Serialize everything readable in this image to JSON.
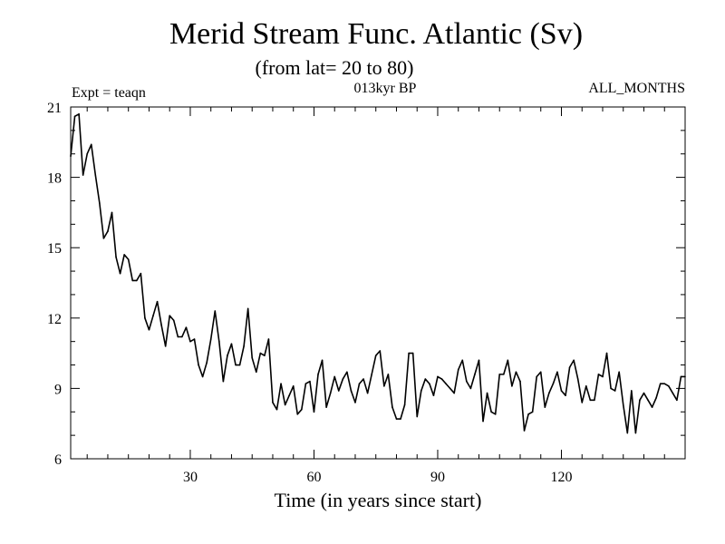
{
  "chart_data": {
    "type": "line",
    "title": "Merid Stream Func. Atlantic (Sv)",
    "subtitle": "(from lat= 20 to 80)",
    "left_label": "Expt = teaqn",
    "center_label": "013kyr BP",
    "right_label": "ALL_MONTHS",
    "xlabel": "Time (in years since start)",
    "ylabel": "",
    "xlim": [
      1,
      150
    ],
    "ylim": [
      6,
      21
    ],
    "x_ticks": [
      30,
      60,
      90,
      120
    ],
    "y_ticks": [
      6,
      9,
      12,
      15,
      18,
      21
    ],
    "grid": false,
    "series": [
      {
        "name": "Merid Stream Func. Atlantic",
        "x": [
          1,
          2,
          3,
          4,
          5,
          6,
          7,
          8,
          9,
          10,
          11,
          12,
          13,
          14,
          15,
          16,
          17,
          18,
          19,
          20,
          21,
          22,
          23,
          24,
          25,
          26,
          27,
          28,
          29,
          30,
          31,
          32,
          33,
          34,
          35,
          36,
          37,
          38,
          39,
          40,
          41,
          42,
          43,
          44,
          45,
          46,
          47,
          48,
          49,
          50,
          51,
          52,
          53,
          54,
          55,
          56,
          57,
          58,
          59,
          60,
          61,
          62,
          63,
          64,
          65,
          66,
          67,
          68,
          69,
          70,
          71,
          72,
          73,
          74,
          75,
          76,
          77,
          78,
          79,
          80,
          81,
          82,
          83,
          84,
          85,
          86,
          87,
          88,
          89,
          90,
          91,
          92,
          93,
          94,
          95,
          96,
          97,
          98,
          99,
          100,
          101,
          102,
          103,
          104,
          105,
          106,
          107,
          108,
          109,
          110,
          111,
          112,
          113,
          114,
          115,
          116,
          117,
          118,
          119,
          120,
          121,
          122,
          123,
          124,
          125,
          126,
          127,
          128,
          129,
          130,
          131,
          132,
          133,
          134,
          135,
          136,
          137,
          138,
          139,
          140,
          141,
          142,
          143,
          144,
          145,
          146,
          147,
          148,
          149,
          150
        ],
        "values": [
          18.9,
          20.6,
          20.7,
          18.1,
          19.0,
          19.4,
          18.1,
          16.9,
          15.4,
          15.7,
          16.5,
          14.6,
          13.9,
          14.7,
          14.5,
          13.6,
          13.6,
          13.9,
          12.0,
          11.5,
          12.1,
          12.7,
          11.7,
          10.8,
          12.1,
          11.9,
          11.2,
          11.2,
          11.6,
          11.0,
          11.1,
          10.0,
          9.5,
          10.1,
          11.1,
          12.3,
          11.0,
          9.3,
          10.4,
          10.9,
          10.0,
          10.0,
          10.8,
          12.4,
          10.3,
          9.7,
          10.5,
          10.4,
          11.1,
          8.4,
          8.1,
          9.2,
          8.3,
          8.7,
          9.1,
          7.9,
          8.1,
          9.2,
          9.3,
          8.0,
          9.6,
          10.2,
          8.2,
          8.8,
          9.5,
          8.9,
          9.4,
          9.7,
          8.9,
          8.4,
          9.2,
          9.4,
          8.8,
          9.6,
          10.4,
          10.6,
          9.1,
          9.6,
          8.2,
          7.7,
          7.7,
          8.3,
          10.5,
          10.5,
          7.8,
          8.9,
          9.4,
          9.2,
          8.7,
          9.5,
          9.4,
          9.2,
          9.0,
          8.8,
          9.8,
          10.2,
          9.3,
          9.0,
          9.6,
          10.2,
          7.6,
          8.8,
          8.0,
          7.9,
          9.6,
          9.6,
          10.2,
          9.1,
          9.7,
          9.3,
          7.2,
          7.9,
          8.0,
          9.5,
          9.7,
          8.2,
          8.8,
          9.2,
          9.7,
          8.9,
          8.7,
          9.9,
          10.2,
          9.4,
          8.4,
          9.1,
          8.5,
          8.5,
          9.6,
          9.5,
          10.5,
          9.0,
          8.9,
          9.7,
          8.3,
          7.1,
          8.9,
          7.1,
          8.5,
          8.8,
          8.5,
          8.2,
          8.6,
          9.2,
          9.2,
          9.1,
          8.8,
          8.5,
          9.5,
          9.5
        ]
      }
    ]
  }
}
